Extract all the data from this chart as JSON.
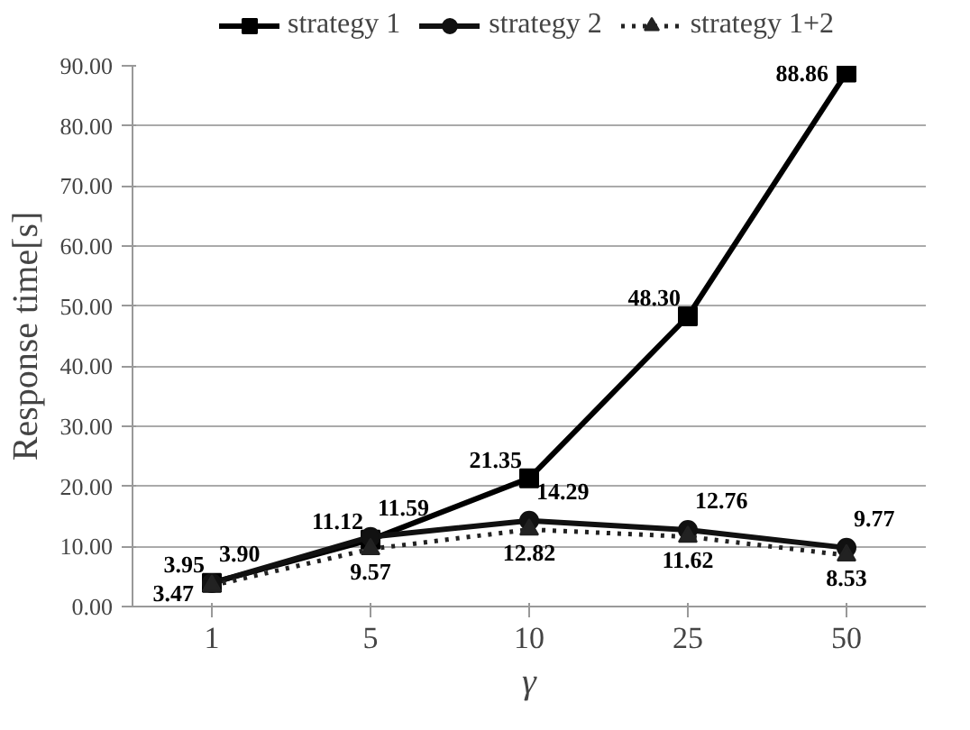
{
  "chart_data": {
    "type": "line",
    "xlabel": "γ",
    "ylabel": "Response time[s]",
    "categories": [
      "1",
      "5",
      "10",
      "25",
      "50"
    ],
    "ylim": [
      0,
      90
    ],
    "yticks": [
      {
        "value": 0,
        "label": "0.00"
      },
      {
        "value": 10,
        "label": "10.00"
      },
      {
        "value": 20,
        "label": "20.00"
      },
      {
        "value": 30,
        "label": "30.00"
      },
      {
        "value": 40,
        "label": "40.00"
      },
      {
        "value": 50,
        "label": "50.00"
      },
      {
        "value": 60,
        "label": "60.00"
      },
      {
        "value": 70,
        "label": "70.00"
      },
      {
        "value": 80,
        "label": "80.00"
      },
      {
        "value": 90,
        "label": "90.00"
      }
    ],
    "grid": "y",
    "legend": "top",
    "series": [
      {
        "name": "strategy 1",
        "color": "#000000",
        "marker": "square",
        "line_style": "solid",
        "values": [
          3.95,
          11.12,
          21.35,
          48.3,
          88.86
        ],
        "value_labels": [
          "3.95",
          "11.12",
          "21.35",
          "48.30",
          "88.86"
        ]
      },
      {
        "name": "strategy 2",
        "color": "#111111",
        "marker": "circle",
        "line_style": "solid",
        "values": [
          3.9,
          11.59,
          14.29,
          12.76,
          9.77
        ],
        "value_labels": [
          "3.90",
          "11.59",
          "14.29",
          "12.76",
          "9.77"
        ]
      },
      {
        "name": "strategy 1+2",
        "color": "#222222",
        "marker": "triangle",
        "line_style": "dotted",
        "values": [
          3.47,
          9.57,
          12.82,
          11.62,
          8.53
        ],
        "value_labels": [
          "3.47",
          "9.57",
          "12.82",
          "11.62",
          "8.53"
        ]
      }
    ]
  }
}
